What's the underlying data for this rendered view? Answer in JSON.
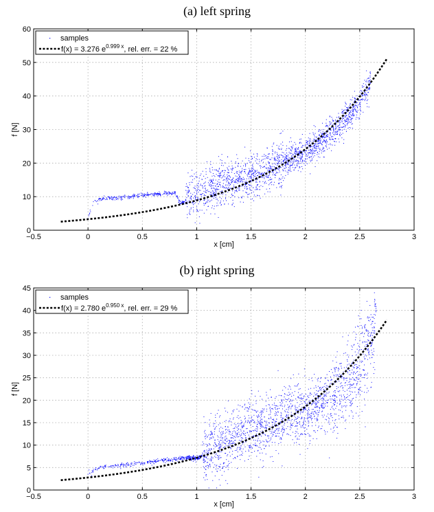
{
  "chart_data": [
    {
      "type": "scatter",
      "title": "(a) left spring",
      "xlabel": "x [cm]",
      "ylabel": "f [N]",
      "xlim": [
        -0.5,
        3
      ],
      "ylim": [
        0,
        60
      ],
      "xticks": [
        "−0.5",
        "0",
        "0.5",
        "1",
        "1.5",
        "2",
        "2.5",
        "3"
      ],
      "yticks": [
        "0",
        "10",
        "20",
        "30",
        "40",
        "50",
        "60"
      ],
      "grid": true,
      "legend_position": "top-left",
      "series": [
        {
          "name": "samples",
          "kind": "points",
          "color": "#0000ff",
          "x": [
            0.0,
            0.02,
            0.05,
            0.1,
            0.15,
            0.2,
            0.3,
            0.4,
            0.5,
            0.6,
            0.7,
            0.8,
            0.85,
            0.9,
            1.0,
            1.1,
            1.2,
            1.3,
            1.4,
            1.5,
            1.6,
            1.7,
            1.8,
            1.9,
            2.0,
            2.1,
            2.2,
            2.3,
            2.4,
            2.5,
            2.55,
            2.6
          ],
          "y": [
            3.5,
            6,
            8.5,
            9.2,
            9.5,
            9.6,
            9.8,
            10.1,
            10.4,
            10.6,
            10.9,
            11.2,
            8,
            9,
            11,
            12,
            13,
            14,
            15,
            16,
            17,
            19,
            20,
            22,
            23,
            25,
            28,
            31,
            34,
            38,
            41,
            44
          ]
        },
        {
          "name": "f(x) = 3.276 e^{0.999 x}, rel. err. = 22 %",
          "kind": "fit",
          "color": "#000000",
          "a": 3.276,
          "b": 0.999,
          "x_range": [
            -0.25,
            2.75
          ]
        }
      ],
      "legend": {
        "samples_label": "samples",
        "fit_prefix": "f(x) = 3.276 e",
        "fit_exp": "0.999 x",
        "fit_suffix": ", rel. err. = 22 %"
      }
    },
    {
      "type": "scatter",
      "title": "(b) right spring",
      "xlabel": "x [cm]",
      "ylabel": "f [N]",
      "xlim": [
        -0.5,
        3
      ],
      "ylim": [
        0,
        45
      ],
      "xticks": [
        "−0.5",
        "0",
        "0.5",
        "1",
        "1.5",
        "2",
        "2.5",
        "3"
      ],
      "yticks": [
        "0",
        "5",
        "10",
        "15",
        "20",
        "25",
        "30",
        "35",
        "40",
        "45"
      ],
      "grid": true,
      "legend_position": "top-left",
      "series": [
        {
          "name": "samples",
          "kind": "points",
          "color": "#0000ff",
          "x": [
            0.0,
            0.05,
            0.1,
            0.2,
            0.3,
            0.4,
            0.5,
            0.6,
            0.7,
            0.8,
            0.9,
            1.0,
            1.1,
            1.2,
            1.3,
            1.4,
            1.5,
            1.6,
            1.7,
            1.8,
            1.9,
            2.0,
            2.1,
            2.2,
            2.3,
            2.4,
            2.5,
            2.6,
            2.65
          ],
          "y": [
            3.5,
            4.3,
            5,
            5.2,
            5.5,
            5.8,
            6,
            6.3,
            6.6,
            6.9,
            7.2,
            7,
            8,
            10,
            11,
            12,
            13,
            14,
            15,
            16,
            17,
            18,
            19,
            20,
            22,
            24,
            27,
            32,
            40
          ]
        },
        {
          "name": "f(x) = 2.780 e^{0.950 x}, rel. err. = 29 %",
          "kind": "fit",
          "color": "#000000",
          "a": 2.78,
          "b": 0.95,
          "x_range": [
            -0.25,
            2.75
          ]
        }
      ],
      "legend": {
        "samples_label": "samples",
        "fit_prefix": "f(x) = 2.780 e",
        "fit_exp": "0.950 x",
        "fit_suffix": ", rel. err. = 29 %"
      }
    }
  ]
}
